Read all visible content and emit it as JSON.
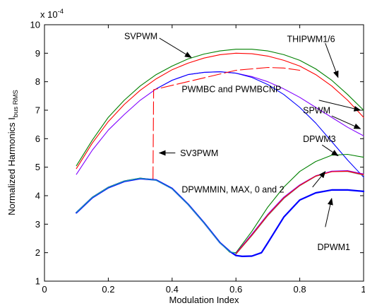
{
  "chart_data": {
    "type": "line",
    "title": "",
    "xlabel": "Modulation Index",
    "ylabel_main": "Normalized Harmonics I",
    "ylabel_sub": "bus RMS",
    "y_multiplier_base": "x 10",
    "y_multiplier_exp": "-4",
    "xlim": [
      0,
      1
    ],
    "ylim": [
      1,
      10
    ],
    "xticks": [
      0,
      0.2,
      0.4,
      0.6,
      0.8,
      1
    ],
    "xtick_labels": [
      "0",
      "0.2",
      "0.4",
      "0.6",
      "0.8",
      "1"
    ],
    "yticks": [
      1,
      2,
      3,
      4,
      5,
      6,
      7,
      8,
      9,
      10
    ],
    "ytick_labels": [
      "1",
      "2",
      "3",
      "4",
      "5",
      "6",
      "7",
      "8",
      "9",
      "10"
    ],
    "grid": false,
    "legend": "none",
    "series": [
      {
        "key": "svpwm",
        "color": "#008000",
        "width": 1.1,
        "x": [
          0.1,
          0.15,
          0.2,
          0.25,
          0.3,
          0.35,
          0.4,
          0.45,
          0.5,
          0.55,
          0.6,
          0.65,
          0.7,
          0.75,
          0.8,
          0.85,
          0.9,
          0.95,
          1.0
        ],
        "y": [
          5.05,
          5.95,
          6.75,
          7.35,
          7.85,
          8.25,
          8.55,
          8.8,
          8.97,
          9.08,
          9.14,
          9.14,
          9.08,
          8.95,
          8.75,
          8.45,
          8.05,
          7.55,
          7.0
        ]
      },
      {
        "key": "thipwm",
        "color": "#ff0000",
        "width": 1.1,
        "x": [
          0.1,
          0.15,
          0.2,
          0.25,
          0.3,
          0.35,
          0.4,
          0.45,
          0.5,
          0.55,
          0.6,
          0.65,
          0.7,
          0.75,
          0.8,
          0.85,
          0.9,
          0.95,
          1.0
        ],
        "y": [
          4.95,
          5.85,
          6.6,
          7.2,
          7.7,
          8.1,
          8.42,
          8.65,
          8.83,
          8.95,
          9.0,
          8.98,
          8.9,
          8.75,
          8.55,
          8.25,
          7.85,
          7.35,
          6.75
        ]
      },
      {
        "key": "pwmbc",
        "color": "#8000ff",
        "width": 1.1,
        "x": [
          0.1,
          0.15,
          0.2,
          0.25,
          0.3,
          0.35,
          0.4,
          0.45,
          0.5,
          0.55,
          0.6,
          0.65,
          0.7,
          0.75,
          0.8,
          0.85,
          0.9,
          0.95,
          1.0
        ],
        "y": [
          4.75,
          5.6,
          6.3,
          6.85,
          7.35,
          7.75,
          8.05,
          8.25,
          8.33,
          8.35,
          8.3,
          8.18,
          8.0,
          7.75,
          7.45,
          7.1,
          6.75,
          6.4,
          6.1
        ]
      },
      {
        "key": "spwm",
        "color": "#0000ff",
        "width": 1.1,
        "x": [
          0.35,
          0.4,
          0.45,
          0.5,
          0.55,
          0.6,
          0.65,
          0.7,
          0.75,
          0.8,
          0.85,
          0.9,
          0.95,
          1.0
        ],
        "y": [
          7.75,
          8.05,
          8.25,
          8.33,
          8.35,
          8.3,
          8.15,
          7.9,
          7.55,
          7.1,
          6.55,
          5.9,
          5.25,
          4.65
        ]
      },
      {
        "key": "sv3pwm",
        "color": "#ff0000",
        "width": 1.1,
        "dash": "18,5",
        "x": [
          0.34,
          0.342,
          0.6,
          0.65,
          0.7,
          0.75,
          0.8
        ],
        "y": [
          4.57,
          7.72,
          8.4,
          8.45,
          8.5,
          8.48,
          8.4
        ]
      },
      {
        "key": "dpwm3",
        "color": "#008000",
        "width": 1.1,
        "x": [
          0.1,
          0.15,
          0.2,
          0.25,
          0.3,
          0.35,
          0.4,
          0.45,
          0.5,
          0.55,
          0.58,
          0.6,
          0.65,
          0.7,
          0.75,
          0.8,
          0.85,
          0.9,
          0.95,
          1.0
        ],
        "y": [
          3.42,
          3.95,
          4.3,
          4.52,
          4.62,
          4.55,
          4.25,
          3.7,
          3.05,
          2.35,
          2.02,
          2.0,
          2.75,
          3.6,
          4.3,
          4.85,
          5.2,
          5.42,
          5.45,
          5.35
        ]
      },
      {
        "key": "dpwmmin_gray",
        "color": "#808080",
        "width": 1.3,
        "x": [
          0.6,
          0.65,
          0.7,
          0.75,
          0.8,
          0.85,
          0.9,
          0.95,
          1.0
        ],
        "y": [
          1.95,
          2.6,
          3.3,
          3.9,
          4.35,
          4.68,
          4.85,
          4.85,
          4.72
        ]
      },
      {
        "key": "dpwmmin_purple",
        "color": "#8000ff",
        "width": 1.1,
        "x": [
          0.6,
          0.65,
          0.7,
          0.75,
          0.8,
          0.85,
          0.9,
          0.95,
          1.0
        ],
        "y": [
          1.98,
          2.65,
          3.35,
          3.95,
          4.38,
          4.7,
          4.86,
          4.88,
          4.76
        ]
      },
      {
        "key": "dpwmmin_red",
        "color": "#ff0000",
        "width": 1.1,
        "x": [
          0.6,
          0.65,
          0.7,
          0.75,
          0.8,
          0.85,
          0.9,
          0.95,
          1.0
        ],
        "y": [
          1.96,
          2.62,
          3.32,
          3.92,
          4.36,
          4.69,
          4.84,
          4.86,
          4.74
        ]
      },
      {
        "key": "dpwm1",
        "color": "#0000ff",
        "width": 2.2,
        "x": [
          0.1,
          0.15,
          0.2,
          0.25,
          0.3,
          0.35,
          0.4,
          0.45,
          0.5,
          0.55,
          0.58,
          0.6,
          0.62,
          0.65,
          0.68,
          0.7,
          0.75,
          0.8,
          0.85,
          0.9,
          0.95,
          1.0
        ],
        "y": [
          3.4,
          3.93,
          4.28,
          4.5,
          4.6,
          4.55,
          4.25,
          3.7,
          3.05,
          2.35,
          2.05,
          1.9,
          1.87,
          1.88,
          2.0,
          2.35,
          3.25,
          3.85,
          4.1,
          4.2,
          4.2,
          4.15
        ]
      },
      {
        "key": "low_cyan",
        "color": "#20b0b0",
        "width": 1.0,
        "x": [
          0.1,
          0.15,
          0.2,
          0.25,
          0.3,
          0.35,
          0.4,
          0.45,
          0.5,
          0.55,
          0.58,
          0.6
        ],
        "y": [
          3.41,
          3.94,
          4.29,
          4.51,
          4.61,
          4.54,
          4.24,
          3.69,
          3.04,
          2.34,
          2.04,
          1.98
        ]
      }
    ],
    "annotations": [
      {
        "key": "svpwm",
        "label": "SVPWM",
        "arrow_from": [
          0.36,
          9.53
        ],
        "arrow_to": [
          0.46,
          8.85
        ],
        "text_at": [
          0.25,
          9.6
        ]
      },
      {
        "key": "thipwm",
        "label": "THIPWM1/6",
        "arrow_from": [
          0.88,
          9.35
        ],
        "arrow_to": [
          0.92,
          8.15
        ],
        "text_at": [
          0.76,
          9.5
        ]
      },
      {
        "key": "pwmbc",
        "label": "PWMBC and PWMBCNP",
        "arrow_from": [
          0.86,
          7.35
        ],
        "arrow_to": [
          0.99,
          7.0
        ],
        "text_at": [
          0.43,
          7.75
        ]
      },
      {
        "key": "spwm",
        "label": "SPWM",
        "arrow_from": [
          0.9,
          6.8
        ],
        "arrow_to": [
          0.99,
          6.35
        ],
        "text_at": [
          0.81,
          7.0
        ]
      },
      {
        "key": "sv3pwm",
        "label": "SV3PWM",
        "arrow_from": [
          0.41,
          5.5
        ],
        "arrow_to": [
          0.36,
          5.5
        ],
        "text_at": [
          0.425,
          5.5
        ]
      },
      {
        "key": "dpwm3",
        "label": "DPWM3",
        "arrow_from": [
          0.87,
          5.78
        ],
        "arrow_to": [
          0.92,
          5.4
        ],
        "text_at": [
          0.81,
          6.0
        ]
      },
      {
        "key": "dpwmmin",
        "label": "DPWMMIN, MAX, 0 and 2",
        "arrow_from": [
          0.84,
          4.3
        ],
        "arrow_to": [
          0.88,
          4.85
        ],
        "text_at": [
          0.43,
          4.22
        ]
      },
      {
        "key": "dpwm1",
        "label": "DPWM1",
        "arrow_from": [
          0.88,
          2.9
        ],
        "arrow_to": [
          0.9,
          3.9
        ],
        "text_at": [
          0.855,
          2.2
        ]
      }
    ]
  }
}
